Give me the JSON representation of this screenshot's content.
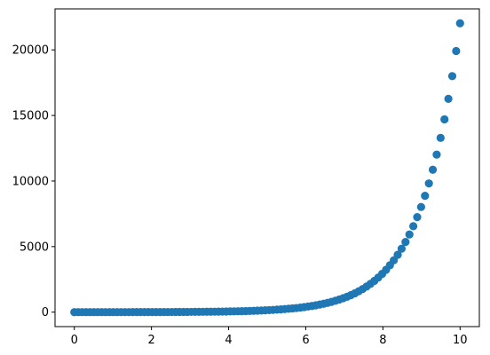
{
  "chart_data": {
    "type": "scatter",
    "title": "",
    "xlabel": "",
    "ylabel": "",
    "xlim": [
      -0.5,
      10.5
    ],
    "ylim": [
      -1101,
      23127
    ],
    "x_ticks": [
      0,
      2,
      4,
      6,
      8,
      10
    ],
    "x_tick_labels": [
      "0",
      "2",
      "4",
      "6",
      "8",
      "10"
    ],
    "y_ticks": [
      0,
      5000,
      10000,
      15000,
      20000
    ],
    "y_tick_labels": [
      "0",
      "5000",
      "10000",
      "15000",
      "20000"
    ],
    "grid": false,
    "legend": null,
    "marker_color": "#1f77b4",
    "series": [
      {
        "x_start": 0,
        "x_end": 10,
        "num_points": 100,
        "y_formula": "exp(x)"
      }
    ]
  }
}
